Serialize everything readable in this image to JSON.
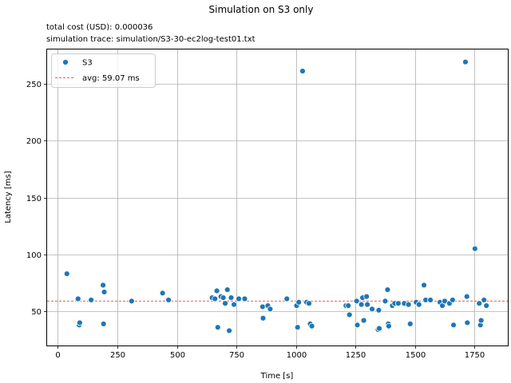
{
  "chart_data": {
    "type": "scatter",
    "title": "Simulation on S3 only",
    "subtitle_lines": [
      "total cost (USD):  0.000036",
      "simulation trace:  simulation/S3-30-ec2log-test01.txt"
    ],
    "xlabel": "Time [s]",
    "ylabel": "Latency [ms]",
    "xlim": [
      -45,
      1890
    ],
    "ylim": [
      20,
      280
    ],
    "xticks": [
      0,
      250,
      500,
      750,
      1000,
      1250,
      1500,
      1750
    ],
    "yticks": [
      50,
      100,
      150,
      200,
      250
    ],
    "grid": true,
    "legend_position": "top-left",
    "colors": {
      "points": "#1f77b4",
      "avg_line": "#d62728",
      "grid": "#b0b0b0"
    },
    "series": [
      {
        "name": "S3",
        "points": [
          [
            38,
            83
          ],
          [
            85,
            61
          ],
          [
            90,
            38
          ],
          [
            92,
            40
          ],
          [
            140,
            60
          ],
          [
            190,
            73
          ],
          [
            192,
            39
          ],
          [
            195,
            67
          ],
          [
            310,
            59
          ],
          [
            440,
            66
          ],
          [
            465,
            60
          ],
          [
            648,
            62
          ],
          [
            660,
            61
          ],
          [
            668,
            68
          ],
          [
            672,
            36
          ],
          [
            685,
            63
          ],
          [
            695,
            62
          ],
          [
            703,
            57
          ],
          [
            712,
            69
          ],
          [
            720,
            33
          ],
          [
            728,
            62
          ],
          [
            740,
            56
          ],
          [
            760,
            61
          ],
          [
            785,
            61
          ],
          [
            860,
            54
          ],
          [
            862,
            44
          ],
          [
            882,
            55
          ],
          [
            892,
            52
          ],
          [
            962,
            61
          ],
          [
            1003,
            55
          ],
          [
            1007,
            36
          ],
          [
            1012,
            58
          ],
          [
            1028,
            261
          ],
          [
            1045,
            58
          ],
          [
            1055,
            57
          ],
          [
            1060,
            39
          ],
          [
            1067,
            37
          ],
          [
            1210,
            55
          ],
          [
            1220,
            55
          ],
          [
            1225,
            47
          ],
          [
            1255,
            59
          ],
          [
            1258,
            38
          ],
          [
            1275,
            56
          ],
          [
            1280,
            62
          ],
          [
            1285,
            42
          ],
          [
            1297,
            63
          ],
          [
            1300,
            56
          ],
          [
            1320,
            52
          ],
          [
            1345,
            34
          ],
          [
            1348,
            51
          ],
          [
            1350,
            35
          ],
          [
            1375,
            59
          ],
          [
            1385,
            69
          ],
          [
            1388,
            39
          ],
          [
            1390,
            37
          ],
          [
            1405,
            55
          ],
          [
            1415,
            57
          ],
          [
            1430,
            57
          ],
          [
            1455,
            57
          ],
          [
            1473,
            56
          ],
          [
            1480,
            39
          ],
          [
            1505,
            58
          ],
          [
            1517,
            56
          ],
          [
            1538,
            73
          ],
          [
            1545,
            60
          ],
          [
            1565,
            60
          ],
          [
            1605,
            58
          ],
          [
            1615,
            55
          ],
          [
            1625,
            59
          ],
          [
            1645,
            57
          ],
          [
            1658,
            60
          ],
          [
            1662,
            38
          ],
          [
            1712,
            269
          ],
          [
            1718,
            63
          ],
          [
            1720,
            40
          ],
          [
            1752,
            105
          ],
          [
            1770,
            57
          ],
          [
            1775,
            38
          ],
          [
            1778,
            42
          ],
          [
            1790,
            60
          ],
          [
            1800,
            55
          ]
        ]
      }
    ],
    "avg_line": {
      "label": "avg: 59.07 ms",
      "value": 59.07
    }
  }
}
